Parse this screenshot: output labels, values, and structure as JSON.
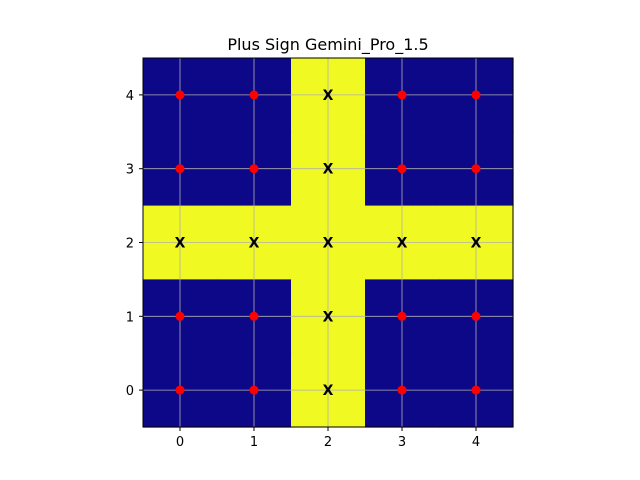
{
  "chart_data": {
    "type": "heatmap",
    "title": "Plus Sign Gemini_Pro_1.5",
    "xlabel": "",
    "ylabel": "",
    "x_ticks": [
      0,
      1,
      2,
      3,
      4
    ],
    "y_ticks": [
      0,
      1,
      2,
      3,
      4
    ],
    "xlim": [
      -0.5,
      4.5
    ],
    "ylim": [
      -0.5,
      4.5
    ],
    "grid": true,
    "colors": {
      "low": "#0d0887",
      "high": "#f0f921",
      "dot": "#ff0000",
      "grid": "#b0b0b0"
    },
    "grid_values_rows_top_to_bottom": [
      [
        0,
        0,
        1,
        0,
        0
      ],
      [
        0,
        0,
        1,
        0,
        0
      ],
      [
        1,
        1,
        1,
        1,
        1
      ],
      [
        0,
        0,
        1,
        0,
        0
      ],
      [
        0,
        0,
        1,
        0,
        0
      ]
    ],
    "x_marks": {
      "label": "X",
      "points": [
        [
          2,
          4
        ],
        [
          2,
          3
        ],
        [
          0,
          2
        ],
        [
          1,
          2
        ],
        [
          2,
          2
        ],
        [
          3,
          2
        ],
        [
          4,
          2
        ],
        [
          2,
          1
        ],
        [
          2,
          0
        ]
      ]
    },
    "dot_points": [
      [
        0,
        4
      ],
      [
        1,
        4
      ],
      [
        3,
        4
      ],
      [
        4,
        4
      ],
      [
        0,
        3
      ],
      [
        1,
        3
      ],
      [
        3,
        3
      ],
      [
        4,
        3
      ],
      [
        0,
        1
      ],
      [
        1,
        1
      ],
      [
        3,
        1
      ],
      [
        4,
        1
      ],
      [
        0,
        0
      ],
      [
        1,
        0
      ],
      [
        3,
        0
      ],
      [
        4,
        0
      ]
    ]
  }
}
